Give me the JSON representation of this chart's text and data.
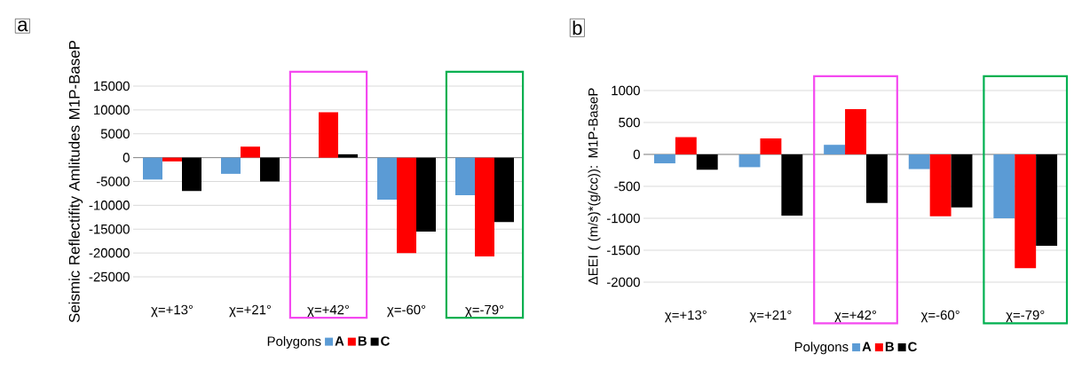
{
  "chart_data": [
    {
      "type": "bar",
      "annotations": [
        "a"
      ],
      "ylabel": "Seismic Reflectifity Amlitudes M1P-BaseP",
      "legend_title": "Polygons",
      "legend": "bottom",
      "grid": "y",
      "categories": [
        "χ=+13°",
        "χ=+21°",
        "χ=+42°",
        "χ=-60°",
        "χ=-79°"
      ],
      "series": [
        {
          "name": "A",
          "color": "#5b9bd5",
          "values": [
            -4600,
            -3400,
            0,
            -8800,
            -7900
          ]
        },
        {
          "name": "B",
          "color": "#ff0000",
          "values": [
            -800,
            2300,
            9500,
            -20000,
            -20700
          ]
        },
        {
          "name": "C",
          "color": "#000000",
          "values": [
            -7000,
            -5000,
            700,
            -15500,
            -13500
          ]
        }
      ],
      "ylim": [
        -25000,
        15000
      ],
      "yticks": [
        -25000,
        -20000,
        -15000,
        -10000,
        -5000,
        0,
        5000,
        10000,
        15000
      ]
    },
    {
      "type": "bar",
      "annotations": [
        "b"
      ],
      "ylabel": "ΔEEI ( (m/s)*(g/cc)): M1P-BaseP",
      "legend_title": "Polygons",
      "legend": "bottom",
      "grid": "y",
      "categories": [
        "χ=+13°",
        "χ=+21°",
        "χ=+42°",
        "χ=-60°",
        "χ=-79°"
      ],
      "series": [
        {
          "name": "A",
          "color": "#5b9bd5",
          "values": [
            -140,
            -200,
            150,
            -230,
            -1000
          ]
        },
        {
          "name": "B",
          "color": "#ff0000",
          "values": [
            270,
            250,
            710,
            -970,
            -1780
          ]
        },
        {
          "name": "C",
          "color": "#000000",
          "values": [
            -240,
            -960,
            -760,
            -830,
            -1430
          ]
        }
      ],
      "ylim": [
        -2000,
        1000
      ],
      "yticks": [
        -2000,
        -1500,
        -1000,
        -500,
        0,
        500,
        1000
      ]
    }
  ]
}
